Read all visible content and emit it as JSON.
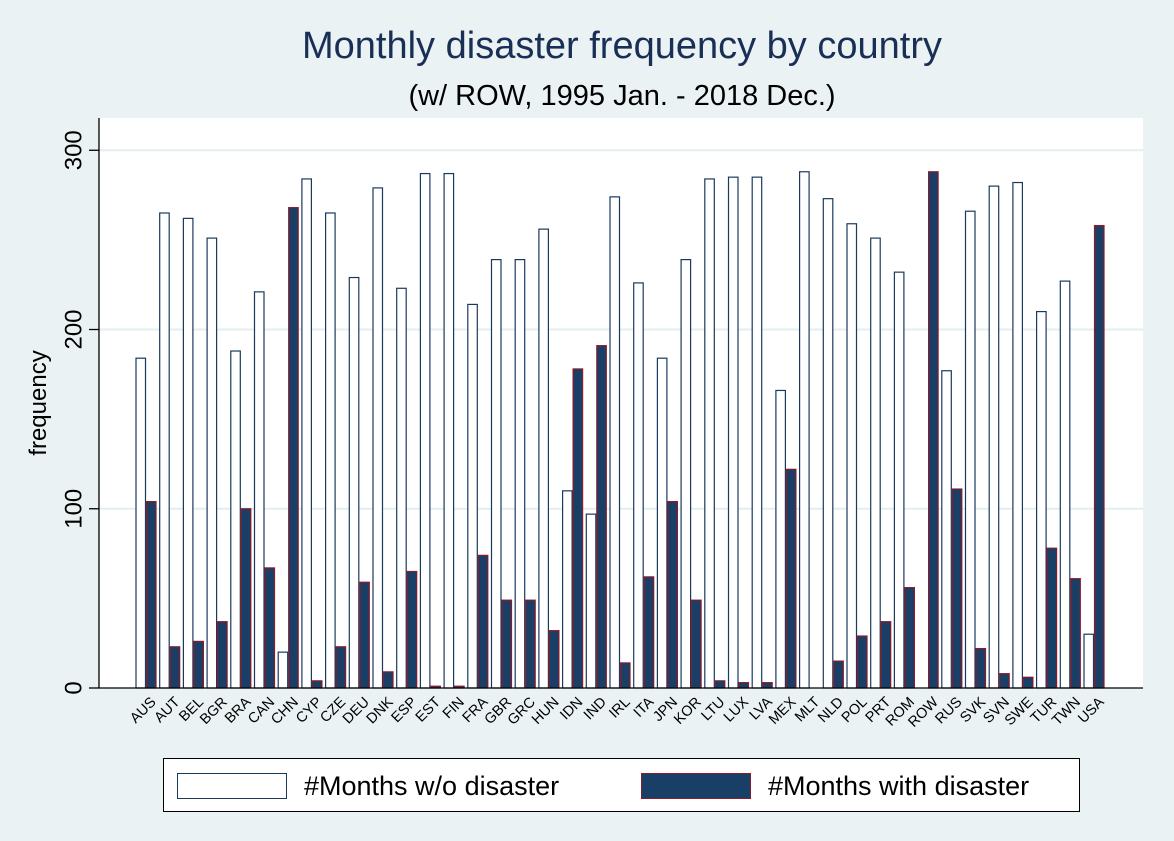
{
  "chart_data": {
    "type": "bar",
    "title": "Monthly disaster frequency by country",
    "subtitle": "(w/ ROW, 1995 Jan. - 2018 Dec.)",
    "ylabel": "frequency",
    "xlabel": "",
    "ylim": [
      0,
      318
    ],
    "yticks": [
      0,
      100,
      200,
      300
    ],
    "grid": true,
    "legend_position": "bottom",
    "categories": [
      "AUS",
      "AUT",
      "BEL",
      "BGR",
      "BRA",
      "CAN",
      "CHN",
      "CYP",
      "CZE",
      "DEU",
      "DNK",
      "ESP",
      "EST",
      "FIN",
      "FRA",
      "GBR",
      "GRC",
      "HUN",
      "IDN",
      "IND",
      "IRL",
      "ITA",
      "JPN",
      "KOR",
      "LTU",
      "LUX",
      "LVA",
      "MEX",
      "MLT",
      "NLD",
      "POL",
      "PRT",
      "ROM",
      "ROW",
      "RUS",
      "SVK",
      "SVN",
      "SWE",
      "TUR",
      "TWN",
      "USA"
    ],
    "series": [
      {
        "name": "#Months w/o disaster",
        "color": "#ffffff",
        "stroke": "#1a3a5c",
        "values": [
          184,
          265,
          262,
          251,
          188,
          221,
          20,
          284,
          265,
          229,
          279,
          223,
          287,
          287,
          214,
          239,
          239,
          256,
          110,
          97,
          274,
          226,
          184,
          239,
          284,
          285,
          285,
          166,
          288,
          273,
          259,
          251,
          232,
          0,
          177,
          266,
          280,
          282,
          210,
          227,
          30
        ]
      },
      {
        "name": "#Months with disaster",
        "color": "#1a3f66",
        "stroke": "#8b1a2a",
        "values": [
          104,
          23,
          26,
          37,
          100,
          67,
          268,
          4,
          23,
          59,
          9,
          65,
          1,
          1,
          74,
          49,
          49,
          32,
          178,
          191,
          14,
          62,
          104,
          49,
          4,
          3,
          3,
          122,
          0,
          15,
          29,
          37,
          56,
          288,
          111,
          22,
          8,
          6,
          78,
          61,
          258
        ]
      }
    ]
  }
}
